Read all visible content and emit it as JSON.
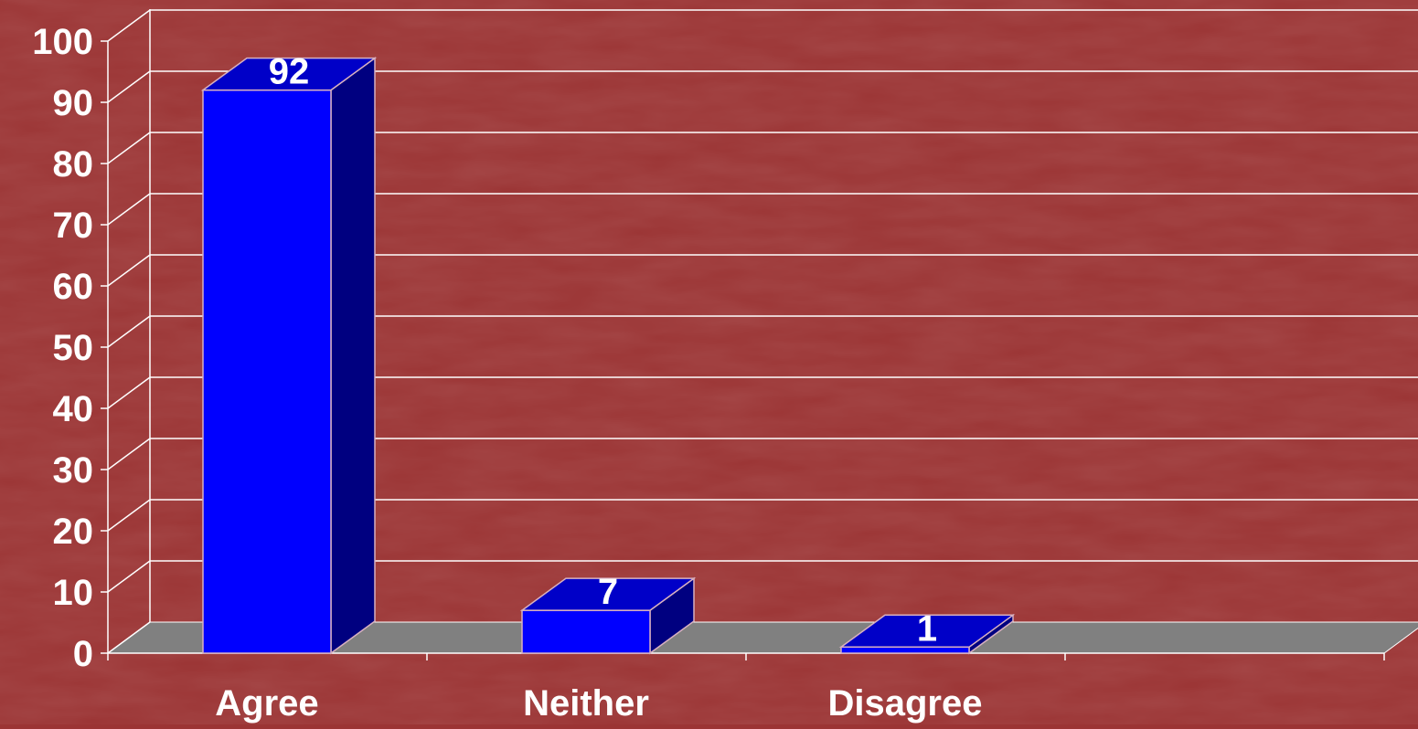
{
  "chart_data": {
    "type": "bar",
    "style": "3d",
    "categories": [
      "Agree",
      "Neither",
      "Disagree"
    ],
    "values": [
      92,
      7,
      1
    ],
    "data_labels": [
      "92",
      "7",
      "1"
    ],
    "yticks": [
      "0",
      "10",
      "20",
      "30",
      "40",
      "50",
      "60",
      "70",
      "80",
      "90",
      "100"
    ],
    "ylim": [
      0,
      100
    ],
    "ystep": 10,
    "n_slots": 4,
    "grid": true,
    "legend": "none",
    "colors": {
      "background": "#9b3434",
      "floor": "#808080",
      "gridline": "#ffffff",
      "bar_front": "#0000ff",
      "bar_side": "#000080",
      "bar_top": "#0000c8",
      "bar_edge": "#d8b0c0",
      "text": "#ffffff"
    }
  }
}
